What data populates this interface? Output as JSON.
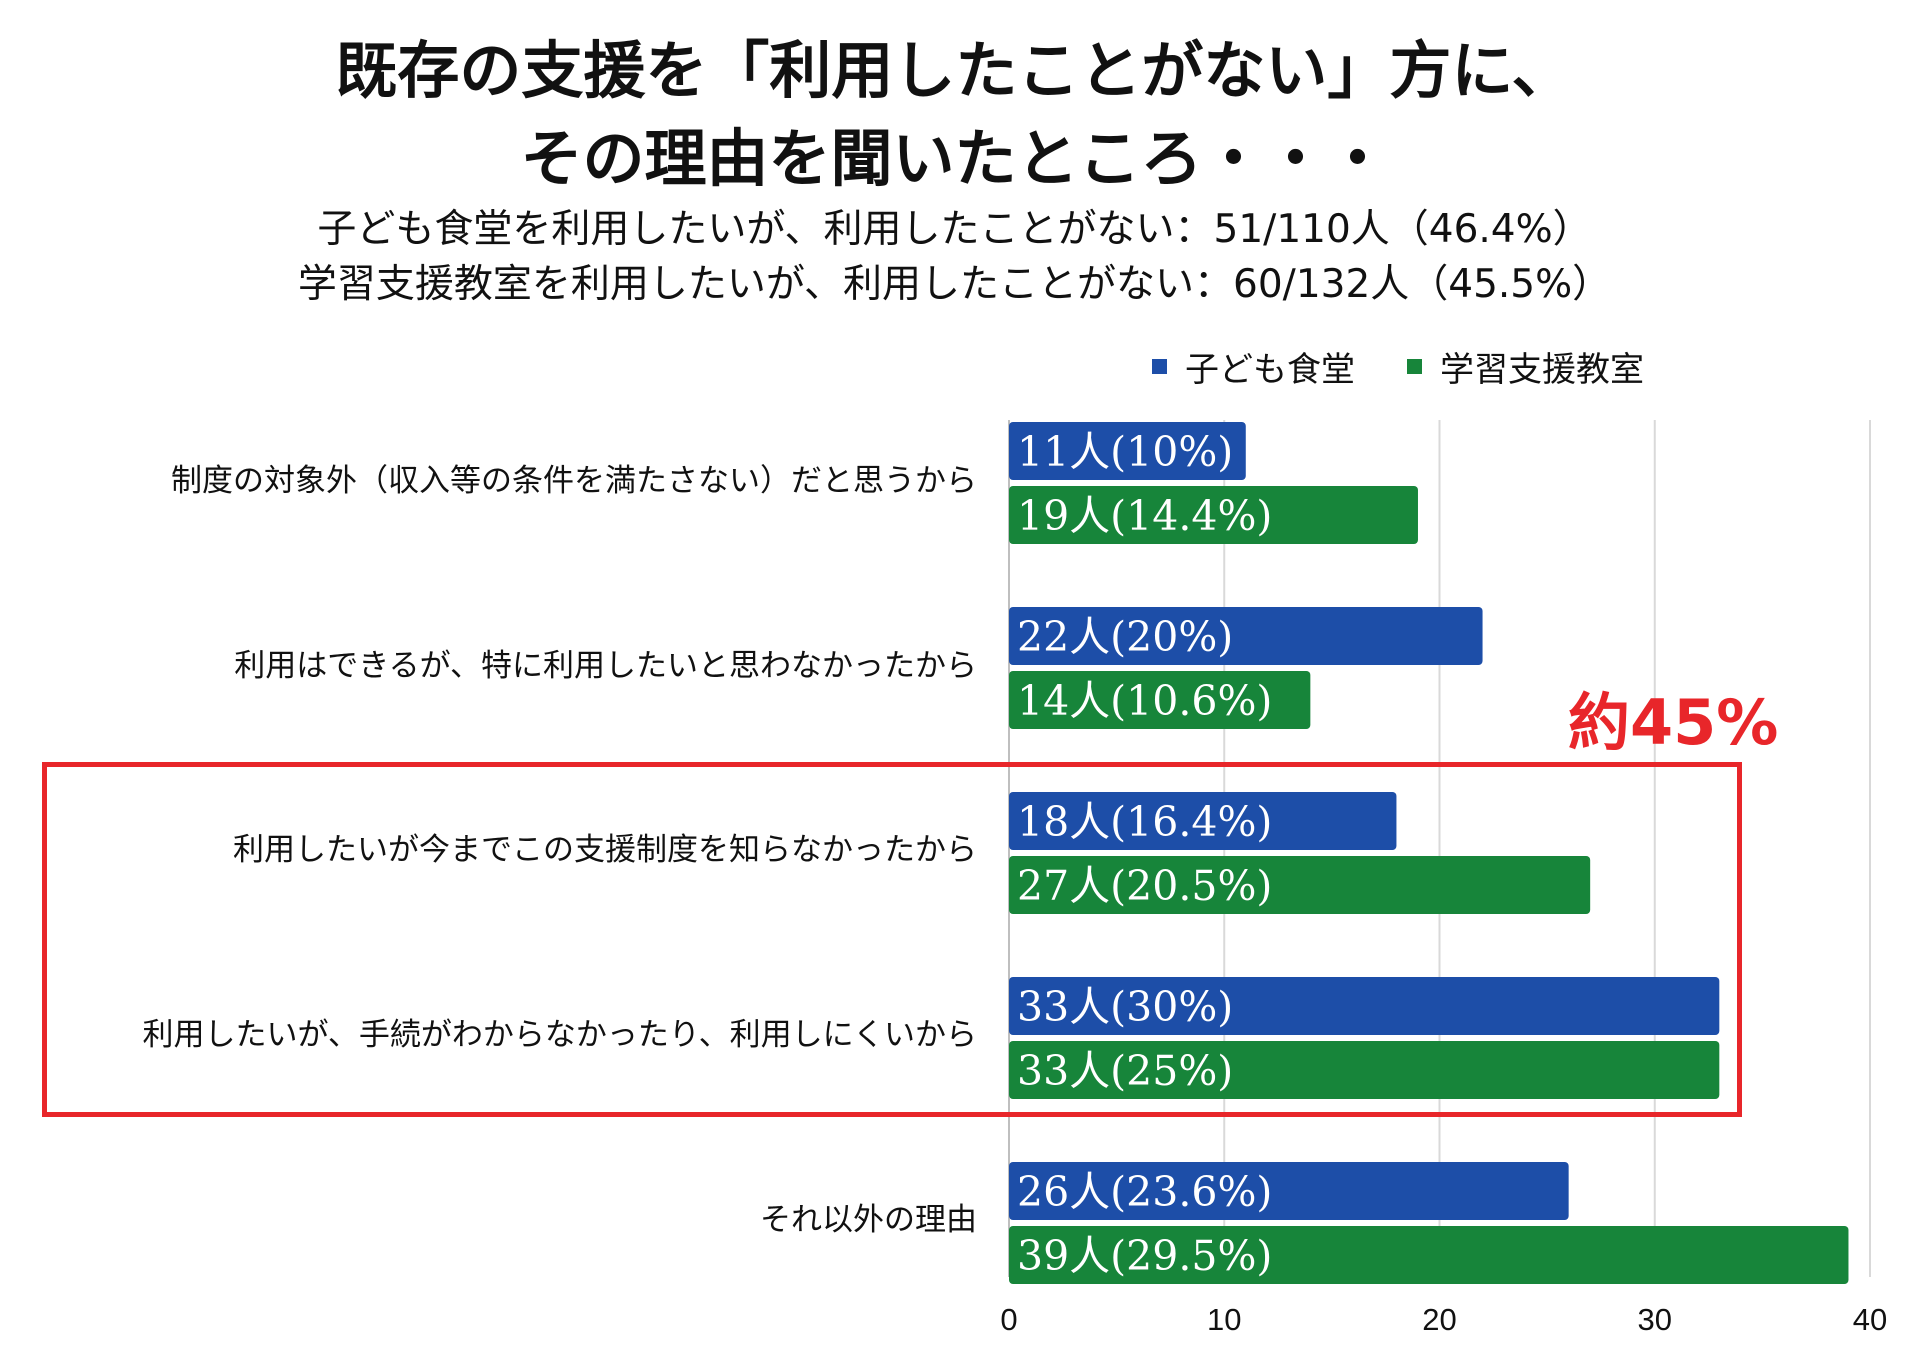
{
  "title_lines": [
    "既存の支援を「利用したことがない」方に、",
    "その理由を聞いたところ・・・"
  ],
  "subtitle_lines": [
    "子ども食堂を利用したいが、利用したことがない：51/110人（46.4%）",
    "学習支援教室を利用したいが、利用したことがない：60/132人（45.5%）"
  ],
  "annotation": "約45%",
  "colors": {
    "series_1": "#1d4ea8",
    "series_2": "#17853a",
    "highlight": "#e8262a",
    "grid": "#d9d9d9"
  },
  "chart_data": {
    "type": "bar",
    "orientation": "horizontal",
    "categories": [
      "制度の対象外（収入等の条件を満たさない）だと思うから",
      "利用はできるが、特に利用したいと思わなかったから",
      "利用したいが今までこの支援制度を知らなかったから",
      "利用したいが、手続がわからなかったり、利用しにくいから",
      "それ以外の理由"
    ],
    "series": [
      {
        "name": "子ども食堂",
        "values": [
          11,
          22,
          18,
          33,
          26
        ],
        "labels": [
          "11人(10%)",
          "22人(20%)",
          "18人(16.4%)",
          "33人(30%)",
          "26人(23.6%)"
        ]
      },
      {
        "name": "学習支援教室",
        "values": [
          19,
          14,
          27,
          33,
          39
        ],
        "labels": [
          "19人(14.4%)",
          "14人(10.6%)",
          "27人(20.5%)",
          "33人(25%)",
          "39人(29.5%)"
        ]
      }
    ],
    "xlim": [
      0,
      40
    ],
    "xticks": [
      0,
      10,
      20,
      30,
      40
    ],
    "grid": true,
    "legend_position": "top",
    "highlighted_categories": [
      2,
      3
    ]
  }
}
